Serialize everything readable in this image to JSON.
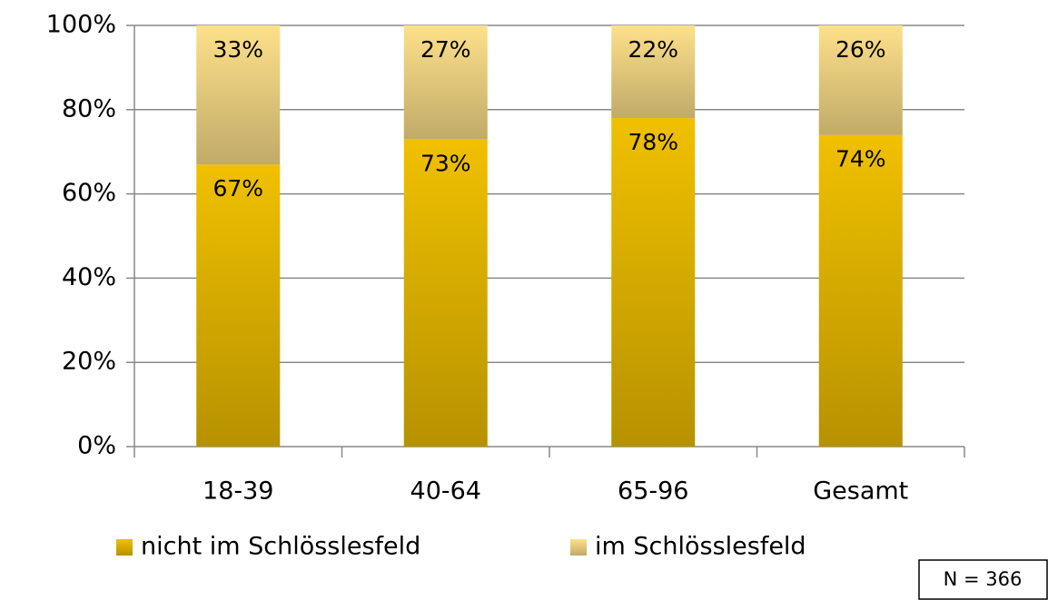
{
  "chart_data": {
    "type": "bar",
    "stacked": true,
    "categories": [
      "18-39",
      "40-64",
      "65-96",
      "Gesamt"
    ],
    "series": [
      {
        "name": "nicht im Schlösslesfeld",
        "color": "#f0c000",
        "values": [
          67,
          73,
          78,
          74
        ],
        "value_labels": [
          "67%",
          "73%",
          "78%",
          "74%"
        ]
      },
      {
        "name": "im Schlösslesfeld",
        "color": "#fde08a",
        "values": [
          33,
          27,
          22,
          26
        ],
        "value_labels": [
          "33%",
          "27%",
          "22%",
          "26%"
        ]
      }
    ],
    "ylim": [
      0,
      100
    ],
    "yticks": [
      {
        "value": 0,
        "label": "0%"
      },
      {
        "value": 20,
        "label": "20%"
      },
      {
        "value": 40,
        "label": "40%"
      },
      {
        "value": 60,
        "label": "60%"
      },
      {
        "value": 80,
        "label": "80%"
      },
      {
        "value": 100,
        "label": "100%"
      }
    ],
    "grid": true,
    "legend": "bottom",
    "annotation": "N = 366"
  }
}
